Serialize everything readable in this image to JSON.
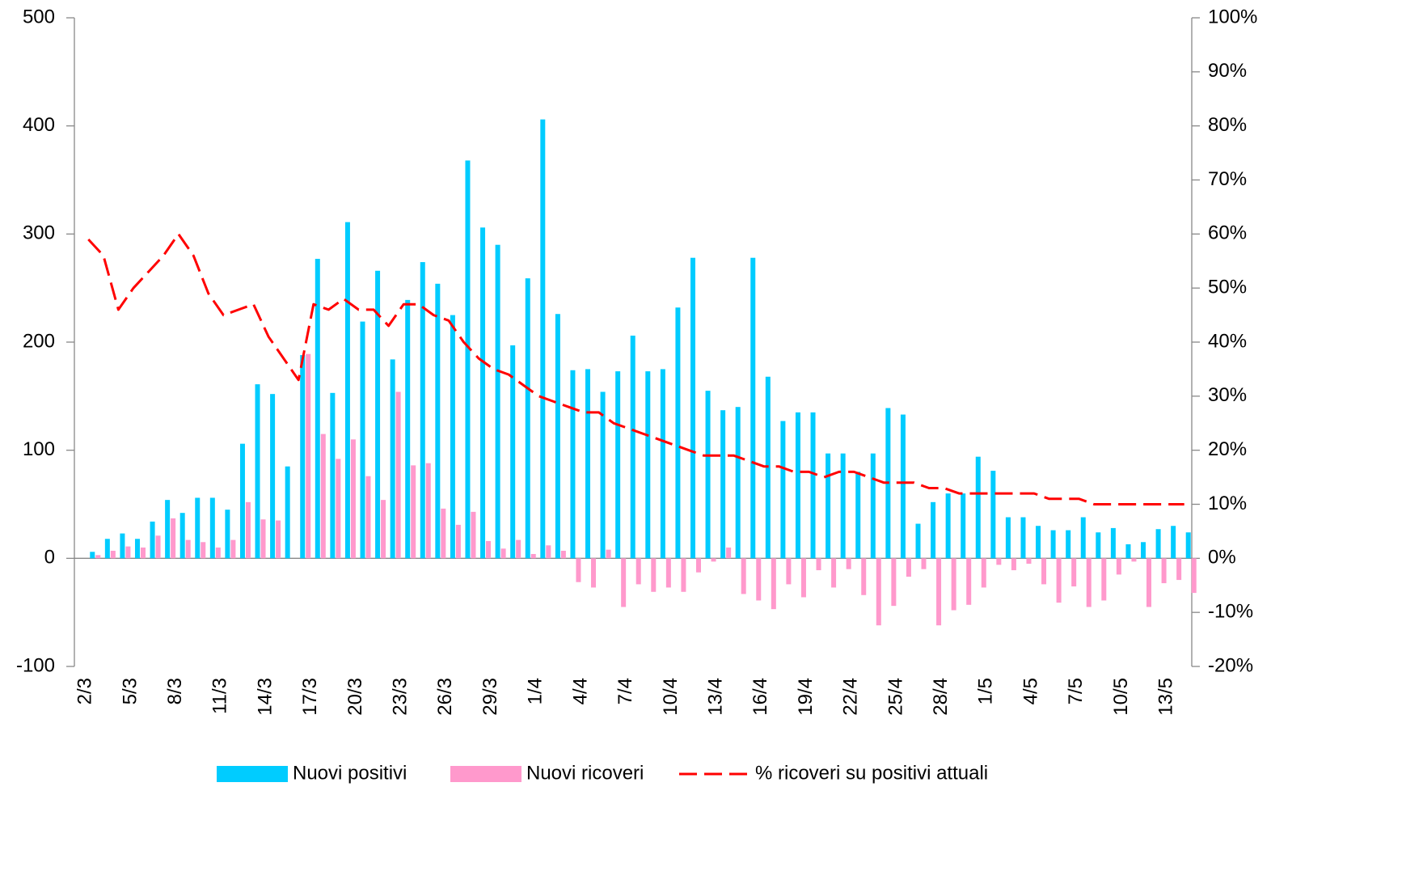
{
  "chart_data": {
    "type": "bar-line",
    "categories": [
      "2/3",
      null,
      null,
      "5/3",
      null,
      null,
      "8/3",
      null,
      null,
      "11/3",
      null,
      null,
      "14/3",
      null,
      null,
      "17/3",
      null,
      null,
      "20/3",
      null,
      null,
      "23/3",
      null,
      null,
      "26/3",
      null,
      null,
      "29/3",
      null,
      null,
      "1/4",
      null,
      null,
      "4/4",
      null,
      null,
      "7/4",
      null,
      null,
      "10/4",
      null,
      null,
      "13/4",
      null,
      null,
      "16/4",
      null,
      null,
      "19/4",
      null,
      null,
      "22/4",
      null,
      null,
      "25/4",
      null,
      null,
      "28/4",
      null,
      null,
      "1/5",
      null,
      null,
      "4/5",
      null,
      null,
      "7/5",
      null,
      null,
      "10/5",
      null,
      null,
      "13/5",
      null
    ],
    "series": [
      {
        "name": "Nuovi positivi",
        "type": "bar",
        "color": "#00ccff",
        "values": [
          6,
          18,
          23,
          18,
          34,
          54,
          42,
          56,
          56,
          45,
          106,
          161,
          152,
          85,
          188,
          277,
          153,
          311,
          219,
          266,
          184,
          239,
          274,
          254,
          225,
          368,
          306,
          290,
          197,
          259,
          406,
          226,
          174,
          175,
          154,
          173,
          206,
          173,
          175,
          232,
          278,
          155,
          137,
          140,
          278,
          168,
          127,
          135,
          135,
          97,
          97,
          80,
          97,
          139,
          133,
          32,
          52,
          60,
          60,
          94,
          81,
          38,
          38,
          30,
          26,
          26,
          38,
          24,
          28,
          13,
          15,
          27,
          30,
          24
        ]
      },
      {
        "name": "Nuovi ricoveri",
        "type": "bar",
        "color": "#ff99cc",
        "values": [
          3,
          7,
          11,
          10,
          21,
          37,
          17,
          15,
          10,
          17,
          52,
          36,
          35,
          0,
          189,
          115,
          92,
          110,
          76,
          54,
          154,
          86,
          88,
          46,
          31,
          43,
          16,
          9,
          17,
          4,
          12,
          7,
          -22,
          -27,
          8,
          -45,
          -24,
          -31,
          -27,
          -31,
          -13,
          -3,
          10,
          -33,
          -39,
          -47,
          -24,
          -36,
          -11,
          -27,
          -10,
          -34,
          -62,
          -44,
          -17,
          -10,
          -62,
          -48,
          -43,
          -27,
          -6,
          -11,
          -5,
          -24,
          -41,
          -26,
          -45,
          -39,
          -15,
          -3,
          -45,
          -23,
          -20,
          -32
        ]
      },
      {
        "name": "% ricoveri su positivi attuali",
        "type": "line",
        "axis": "y2",
        "color": "#ff0000",
        "style": "dashed",
        "values": [
          59,
          56,
          46,
          50,
          53,
          56,
          60,
          56,
          49,
          45,
          46,
          47,
          41,
          37,
          33,
          47,
          46,
          48,
          46,
          46,
          43,
          47,
          47,
          45,
          44,
          40,
          37,
          35,
          34,
          32,
          30,
          29,
          28,
          27,
          27,
          25,
          24,
          23,
          22,
          21,
          20,
          19,
          19,
          19,
          18,
          17,
          17,
          16,
          16,
          15,
          16,
          16,
          15,
          14,
          14,
          14,
          13,
          13,
          12,
          12,
          12,
          12,
          12,
          12,
          11,
          11,
          11,
          10,
          10,
          10,
          10,
          10,
          10,
          10
        ]
      }
    ],
    "ylim": [
      -100,
      500
    ],
    "yticks": [
      -100,
      0,
      100,
      200,
      300,
      400,
      500
    ],
    "y2lim": [
      -20,
      100
    ],
    "y2ticks": [
      {
        "value": -20,
        "label": "-20%"
      },
      {
        "value": -10,
        "label": "-10%"
      },
      {
        "value": 0,
        "label": "0%"
      },
      {
        "value": 10,
        "label": "10%"
      },
      {
        "value": 20,
        "label": "20%"
      },
      {
        "value": 30,
        "label": "30%"
      },
      {
        "value": 40,
        "label": "40%"
      },
      {
        "value": 50,
        "label": "50%"
      },
      {
        "value": 60,
        "label": "60%"
      },
      {
        "value": 70,
        "label": "70%"
      },
      {
        "value": 80,
        "label": "80%"
      },
      {
        "value": 90,
        "label": "90%"
      },
      {
        "value": 100,
        "label": "100%"
      }
    ],
    "legend": "bottom"
  }
}
